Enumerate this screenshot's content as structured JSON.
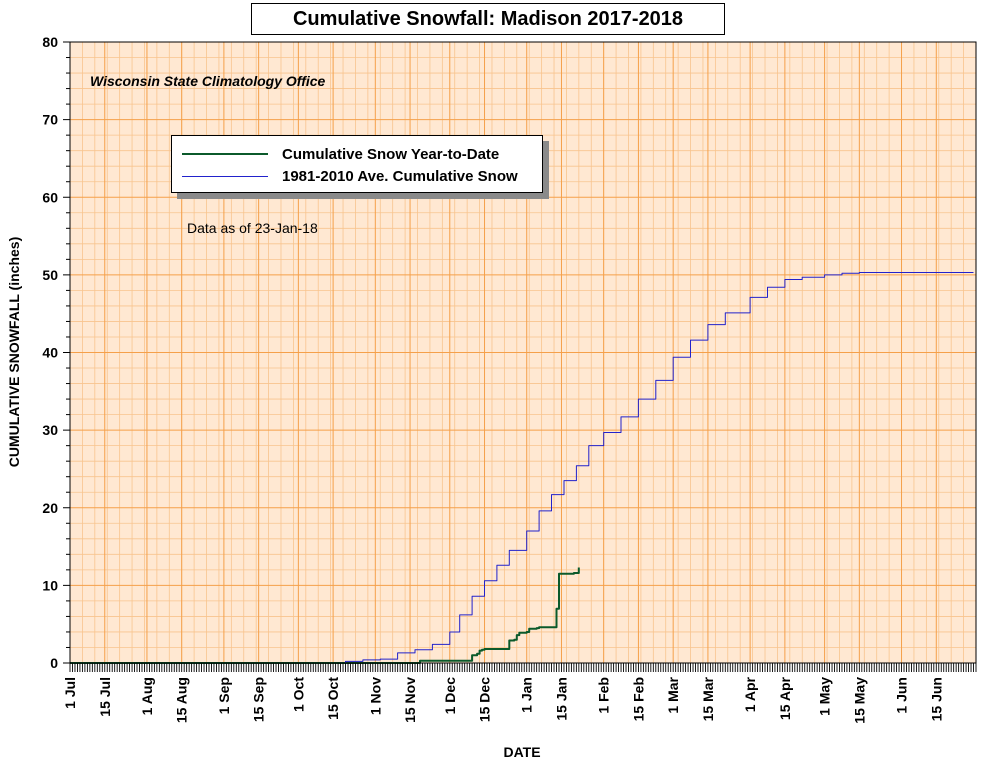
{
  "chart_data": {
    "type": "line",
    "title": "Cumulative Snowfall: Madison 2017-2018",
    "source_note": "Wisconsin State Climatology Office",
    "as_of_note": "Data as of 23-Jan-18",
    "xlabel": "DATE",
    "ylabel": "CUMULATIVE SNOWFALL (inches)",
    "ylim": [
      0,
      80
    ],
    "xlim": [
      "2017-07-01",
      "2018-06-30"
    ],
    "y_ticks": [
      "0",
      "10",
      "20",
      "30",
      "40",
      "50",
      "60",
      "70",
      "80"
    ],
    "x_tick_labels": [
      {
        "label": "1 Jul",
        "date": "2017-07-01"
      },
      {
        "label": "15 Jul",
        "date": "2017-07-15"
      },
      {
        "label": "1 Aug",
        "date": "2017-08-01"
      },
      {
        "label": "15 Aug",
        "date": "2017-08-15"
      },
      {
        "label": "1 Sep",
        "date": "2017-09-01"
      },
      {
        "label": "15 Sep",
        "date": "2017-09-15"
      },
      {
        "label": "1 Oct",
        "date": "2017-10-01"
      },
      {
        "label": "15 Oct",
        "date": "2017-10-15"
      },
      {
        "label": "1 Nov",
        "date": "2017-11-01"
      },
      {
        "label": "15 Nov",
        "date": "2017-11-15"
      },
      {
        "label": "1 Dec",
        "date": "2017-12-01"
      },
      {
        "label": "15 Dec",
        "date": "2017-12-15"
      },
      {
        "label": "1 Jan",
        "date": "2018-01-01"
      },
      {
        "label": "15 Jan",
        "date": "2018-01-15"
      },
      {
        "label": "1 Feb",
        "date": "2018-02-01"
      },
      {
        "label": "15 Feb",
        "date": "2018-02-15"
      },
      {
        "label": "1 Mar",
        "date": "2018-03-01"
      },
      {
        "label": "15 Mar",
        "date": "2018-03-15"
      },
      {
        "label": "1 Apr",
        "date": "2018-04-01"
      },
      {
        "label": "15 Apr",
        "date": "2018-04-15"
      },
      {
        "label": "1 May",
        "date": "2018-05-01"
      },
      {
        "label": "15 May",
        "date": "2018-05-15"
      },
      {
        "label": "1 Jun",
        "date": "2018-06-01"
      },
      {
        "label": "15 Jun",
        "date": "2018-06-15"
      }
    ],
    "grid": true,
    "legend_position": "top-left",
    "colors": {
      "plot_background": "#ffe8d2",
      "major_grid": "#f5a04a",
      "minor_grid": "#f8c48e",
      "series_year_to_date": "#0b5a2b",
      "series_average": "#2222cc"
    },
    "series": [
      {
        "name": "Cumulative Snow Year-to-Date",
        "color": "#0b5a2b",
        "points": [
          {
            "x": "2017-07-01",
            "y": 0
          },
          {
            "x": "2017-11-18",
            "y": 0
          },
          {
            "x": "2017-11-19",
            "y": 0.3
          },
          {
            "x": "2017-12-09",
            "y": 0.3
          },
          {
            "x": "2017-12-10",
            "y": 1.0
          },
          {
            "x": "2017-12-12",
            "y": 1.2
          },
          {
            "x": "2017-12-13",
            "y": 1.6
          },
          {
            "x": "2017-12-14",
            "y": 1.7
          },
          {
            "x": "2017-12-15",
            "y": 1.8
          },
          {
            "x": "2017-12-24",
            "y": 1.8
          },
          {
            "x": "2017-12-25",
            "y": 2.9
          },
          {
            "x": "2017-12-27",
            "y": 3.0
          },
          {
            "x": "2017-12-28",
            "y": 3.6
          },
          {
            "x": "2017-12-29",
            "y": 3.9
          },
          {
            "x": "2018-01-01",
            "y": 4.0
          },
          {
            "x": "2018-01-02",
            "y": 4.4
          },
          {
            "x": "2018-01-05",
            "y": 4.5
          },
          {
            "x": "2018-01-06",
            "y": 4.6
          },
          {
            "x": "2018-01-12",
            "y": 4.6
          },
          {
            "x": "2018-01-13",
            "y": 7.0
          },
          {
            "x": "2018-01-14",
            "y": 11.5
          },
          {
            "x": "2018-01-20",
            "y": 11.6
          },
          {
            "x": "2018-01-21",
            "y": 11.6
          },
          {
            "x": "2018-01-22",
            "y": 12.3
          }
        ]
      },
      {
        "name": "1981-2010 Ave. Cumulative Snow",
        "color": "#2222cc",
        "points": [
          {
            "x": "2017-07-01",
            "y": 0
          },
          {
            "x": "2017-10-13",
            "y": 0
          },
          {
            "x": "2017-10-20",
            "y": 0.2
          },
          {
            "x": "2017-10-27",
            "y": 0.4
          },
          {
            "x": "2017-11-03",
            "y": 0.5
          },
          {
            "x": "2017-11-10",
            "y": 1.3
          },
          {
            "x": "2017-11-17",
            "y": 1.7
          },
          {
            "x": "2017-11-24",
            "y": 2.4
          },
          {
            "x": "2017-12-01",
            "y": 4.0
          },
          {
            "x": "2017-12-05",
            "y": 6.2
          },
          {
            "x": "2017-12-10",
            "y": 8.6
          },
          {
            "x": "2017-12-15",
            "y": 10.6
          },
          {
            "x": "2017-12-20",
            "y": 12.6
          },
          {
            "x": "2017-12-25",
            "y": 14.5
          },
          {
            "x": "2018-01-01",
            "y": 17.0
          },
          {
            "x": "2018-01-06",
            "y": 19.6
          },
          {
            "x": "2018-01-11",
            "y": 21.7
          },
          {
            "x": "2018-01-16",
            "y": 23.5
          },
          {
            "x": "2018-01-21",
            "y": 25.4
          },
          {
            "x": "2018-01-26",
            "y": 28.0
          },
          {
            "x": "2018-02-01",
            "y": 29.7
          },
          {
            "x": "2018-02-08",
            "y": 31.7
          },
          {
            "x": "2018-02-15",
            "y": 34.0
          },
          {
            "x": "2018-02-22",
            "y": 36.4
          },
          {
            "x": "2018-03-01",
            "y": 39.4
          },
          {
            "x": "2018-03-08",
            "y": 41.6
          },
          {
            "x": "2018-03-15",
            "y": 43.6
          },
          {
            "x": "2018-03-22",
            "y": 45.1
          },
          {
            "x": "2018-04-01",
            "y": 47.1
          },
          {
            "x": "2018-04-08",
            "y": 48.4
          },
          {
            "x": "2018-04-15",
            "y": 49.4
          },
          {
            "x": "2018-04-22",
            "y": 49.7
          },
          {
            "x": "2018-05-01",
            "y": 50.0
          },
          {
            "x": "2018-05-08",
            "y": 50.2
          },
          {
            "x": "2018-05-15",
            "y": 50.3
          },
          {
            "x": "2018-06-30",
            "y": 50.3
          }
        ]
      }
    ]
  }
}
